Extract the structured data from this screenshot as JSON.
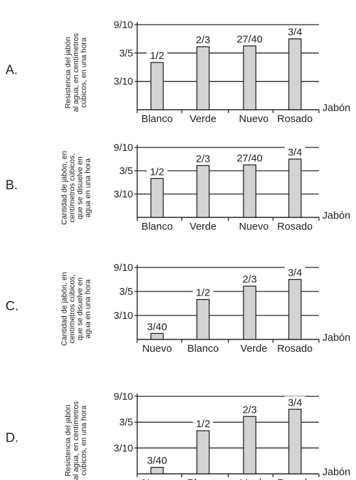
{
  "chart_data": [
    {
      "type": "bar",
      "letter": "A.",
      "ylabel": [
        "Resistencia del jabón",
        "al agua, en centímetros",
        "cúbicos, en una hora"
      ],
      "xlabel": "Jabón",
      "yticks": [
        "9/10",
        "3/5",
        "3/10"
      ],
      "ytick_values": [
        0.9,
        0.6,
        0.3
      ],
      "ylim": [
        0,
        0.9
      ],
      "categories": [
        "Blanco",
        "Verde",
        "Nuevo",
        "Rosado"
      ],
      "values": [
        0.5,
        0.6667,
        0.675,
        0.75
      ],
      "labels": [
        "1/2",
        "2/3",
        "27/40",
        "3/4"
      ]
    },
    {
      "type": "bar",
      "letter": "B.",
      "ylabel": [
        "Cantidad de jabón, en",
        "centímetros  cúbicos,",
        "que se disuelve en",
        "agua  en una hora"
      ],
      "xlabel": "Jabón",
      "yticks": [
        "9/10",
        "3/5",
        "3/10"
      ],
      "ytick_values": [
        0.9,
        0.6,
        0.3
      ],
      "ylim": [
        0,
        0.9
      ],
      "categories": [
        "Blanco",
        "Verde",
        "Nuevo",
        "Rosado"
      ],
      "values": [
        0.5,
        0.6667,
        0.675,
        0.75
      ],
      "labels": [
        "1/2",
        "2/3",
        "27/40",
        "3/4"
      ]
    },
    {
      "type": "bar",
      "letter": "C.",
      "ylabel": [
        "Cantidad de jabón, en",
        "centímetros  cúbicos,",
        "que se disuelve en",
        "agua  en una hora"
      ],
      "xlabel": "Jabón",
      "yticks": [
        "9/10",
        "3/5",
        "3/10"
      ],
      "ytick_values": [
        0.9,
        0.6,
        0.3
      ],
      "ylim": [
        0,
        0.9
      ],
      "categories": [
        "Nuevo",
        "Blanco",
        "Verde",
        "Rosado"
      ],
      "values": [
        0.075,
        0.5,
        0.6667,
        0.75
      ],
      "labels": [
        "3/40",
        "1/2",
        "2/3",
        "3/4"
      ]
    },
    {
      "type": "bar",
      "letter": "D.",
      "ylabel": [
        "Resistencia del jabón",
        "al agua, en centímetros",
        "cúbicos, en una hora"
      ],
      "xlabel": "Jabón",
      "yticks": [
        "9/10",
        "3/5",
        "3/10"
      ],
      "ytick_values": [
        0.9,
        0.6,
        0.3
      ],
      "ylim": [
        0,
        0.9
      ],
      "categories": [
        "Nuevo",
        "Blanco",
        "Verde",
        "Rosado"
      ],
      "values": [
        0.075,
        0.5,
        0.6667,
        0.75
      ],
      "labels": [
        "3/40",
        "1/2",
        "2/3",
        "3/4"
      ]
    }
  ],
  "colors": {
    "bar_fill": "#d3d3d3",
    "bar_stroke": "#222222",
    "line": "#222222"
  }
}
